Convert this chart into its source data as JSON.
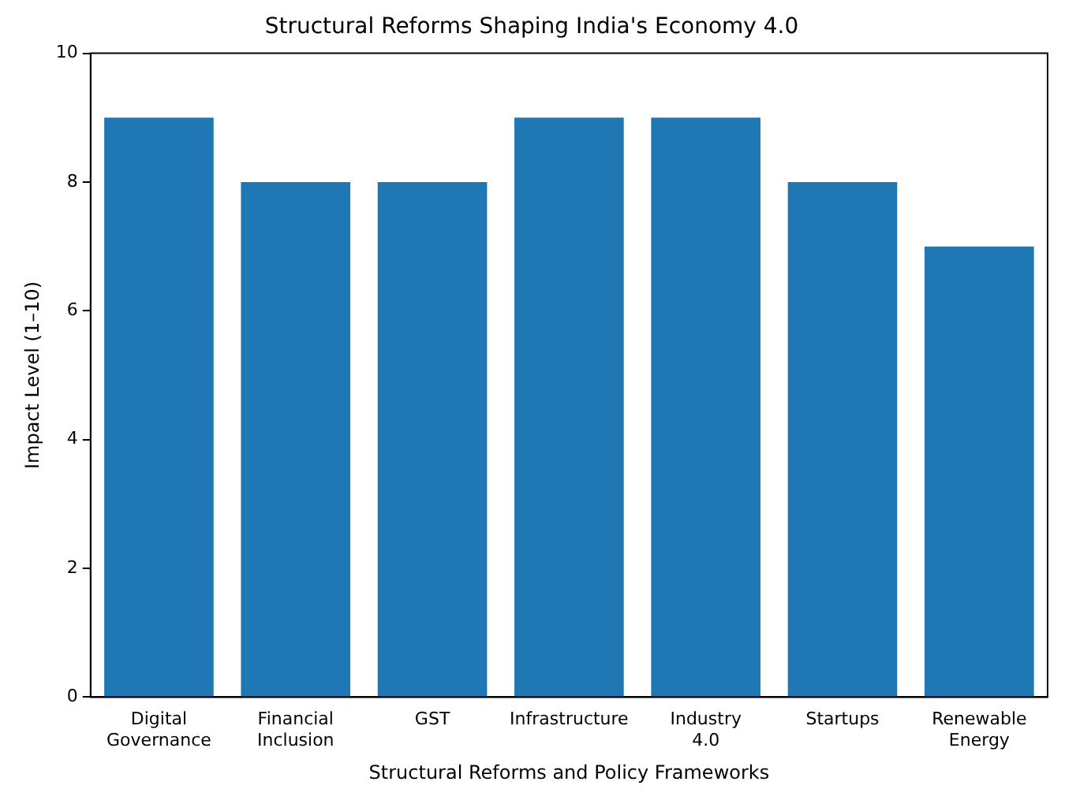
{
  "chart_data": {
    "type": "bar",
    "title": "Structural Reforms Shaping India's Economy 4.0",
    "xlabel": "Structural Reforms and Policy Frameworks",
    "ylabel": "Impact Level (1–10)",
    "categories": [
      "Digital Governance",
      "Financial Inclusion",
      "GST",
      "Infrastructure",
      "Industry 4.0",
      "Startups",
      "Renewable Energy"
    ],
    "values": [
      9,
      8,
      8,
      9,
      9,
      8,
      7
    ],
    "color": "#1f77b4",
    "ylim": [
      0,
      10
    ],
    "yticks": [
      0,
      2,
      4,
      6,
      8,
      10
    ],
    "grid": false,
    "legend": false
  }
}
